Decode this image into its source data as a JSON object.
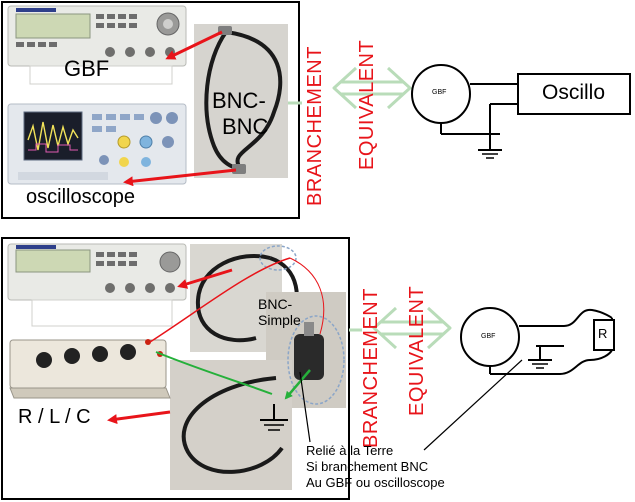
{
  "top": {
    "gbf_label": "GBF",
    "osc_label": "oscilloscope",
    "cable_label_line1": "BNC-",
    "cable_label_line2": "BNC",
    "branchement": "BRANCHEMENT",
    "equivalent": "EQUIVALENT",
    "schematic_source": "GBF",
    "schematic_box": "Oscillo"
  },
  "bottom": {
    "cable_label_line1": "BNC-",
    "cable_label_line2": "Simple",
    "rlc_label": "R / L / C",
    "branchement": "BRANCHEMENT",
    "equivalent": "EQUIVALENT",
    "schematic_source": "GBF",
    "schematic_resistor": "R",
    "note_line1": "Relié à la Terre",
    "note_line2": "Si branchement BNC",
    "note_line3": "Au GBF ou oscilloscope"
  },
  "colors": {
    "arrow": "#e8141a",
    "equivalence_arrow": "#b9dcb9",
    "highlight": "#8aa5c8",
    "ground_wire": "#25b03a"
  }
}
